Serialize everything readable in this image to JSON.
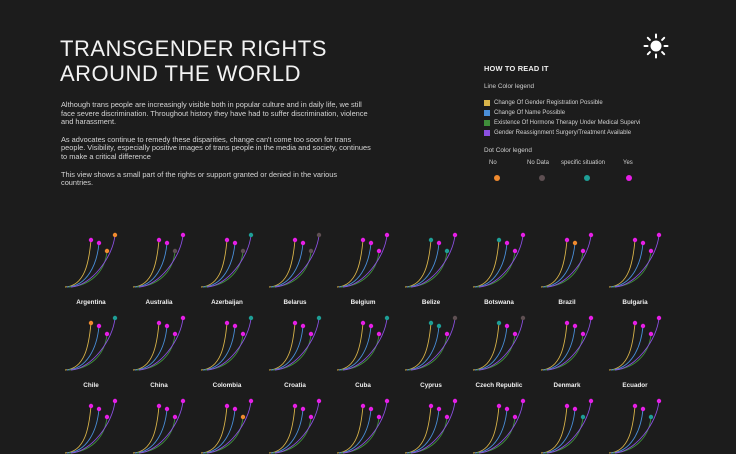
{
  "title_lines": [
    "TRANSGENDER RIGHTS",
    "AROUND THE WORLD"
  ],
  "intro": [
    "Although trans people are increasingly visible both in popular culture and in daily life, we still face severe discrimination. Throughout history they have had to suffer discrimination, violence and harassment.",
    "As advocates continue to remedy these disparities, change can't come too soon for trans people. Visibility, especially positive images of trans people in the media and society, continues to make a critical difference",
    "This view shows a small part of the rights or support granted or denied in the various countries."
  ],
  "howto": {
    "heading": "HOW TO READ IT",
    "line_legend_title": "Line Color legend",
    "line_items": [
      {
        "label": "Change Of Gender Registration Possible",
        "color": "#d9b44a"
      },
      {
        "label": "Change Of Name Possible",
        "color": "#4a8fd9"
      },
      {
        "label": "Existence Of Hormone Therapy Under Medical Supervi",
        "color": "#3f8f3a"
      },
      {
        "label": "Gender Reassignment Surgery/Treatment Available",
        "color": "#8a4fe0"
      }
    ],
    "dot_legend_title": "Dot Color legend",
    "dot_items": [
      {
        "label": "No",
        "color": "#f08a2e"
      },
      {
        "label": "No Data",
        "color": "#5e4f52"
      },
      {
        "label": "specific situation",
        "color": "#1e9e96"
      },
      {
        "label": "Yes",
        "color": "#e61ee6"
      }
    ]
  },
  "countries": [
    {
      "name": "Argentina",
      "status": [
        "yes",
        "yes",
        "no",
        "no"
      ]
    },
    {
      "name": "Australia",
      "status": [
        "yes",
        "yes",
        "no_data",
        "yes"
      ]
    },
    {
      "name": "Azerbaijan",
      "status": [
        "yes",
        "yes",
        "no_data",
        "specific"
      ]
    },
    {
      "name": "Belarus",
      "status": [
        "yes",
        "yes",
        "no_data",
        "no_data"
      ]
    },
    {
      "name": "Belgium",
      "status": [
        "yes",
        "yes",
        "yes",
        "yes"
      ]
    },
    {
      "name": "Belize",
      "status": [
        "specific",
        "yes",
        "specific",
        "yes"
      ]
    },
    {
      "name": "Botswana",
      "status": [
        "specific",
        "yes",
        "yes",
        "yes"
      ]
    },
    {
      "name": "Brazil",
      "status": [
        "yes",
        "no",
        "yes",
        "yes"
      ]
    },
    {
      "name": "Bulgaria",
      "status": [
        "yes",
        "yes",
        "yes",
        "yes"
      ]
    },
    {
      "name": "Chile",
      "status": [
        "no",
        "yes",
        "yes",
        "specific"
      ]
    },
    {
      "name": "China",
      "status": [
        "yes",
        "yes",
        "yes",
        "yes"
      ]
    },
    {
      "name": "Colombia",
      "status": [
        "yes",
        "yes",
        "yes",
        "specific"
      ]
    },
    {
      "name": "Croatia",
      "status": [
        "yes",
        "yes",
        "yes",
        "specific"
      ]
    },
    {
      "name": "Cuba",
      "status": [
        "yes",
        "yes",
        "yes",
        "specific"
      ]
    },
    {
      "name": "Cyprus",
      "status": [
        "specific",
        "specific",
        "yes",
        "no_data"
      ]
    },
    {
      "name": "Czech Republic",
      "status": [
        "specific",
        "yes",
        "yes",
        "no_data"
      ]
    },
    {
      "name": "Denmark",
      "status": [
        "yes",
        "yes",
        "yes",
        "yes"
      ]
    },
    {
      "name": "Ecuador",
      "status": [
        "yes",
        "yes",
        "yes",
        "yes"
      ]
    },
    {
      "name": "",
      "status": [
        "yes",
        "yes",
        "yes",
        "yes"
      ]
    },
    {
      "name": "",
      "status": [
        "yes",
        "yes",
        "yes",
        "yes"
      ]
    },
    {
      "name": "",
      "status": [
        "yes",
        "yes",
        "no",
        "yes"
      ]
    },
    {
      "name": "",
      "status": [
        "yes",
        "yes",
        "yes",
        "yes"
      ]
    },
    {
      "name": "",
      "status": [
        "yes",
        "yes",
        "yes",
        "yes"
      ]
    },
    {
      "name": "",
      "status": [
        "yes",
        "yes",
        "yes",
        "yes"
      ]
    },
    {
      "name": "",
      "status": [
        "yes",
        "yes",
        "yes",
        "yes"
      ]
    },
    {
      "name": "",
      "status": [
        "yes",
        "yes",
        "specific",
        "yes"
      ]
    },
    {
      "name": "",
      "status": [
        "yes",
        "yes",
        "specific",
        "yes"
      ]
    }
  ]
}
